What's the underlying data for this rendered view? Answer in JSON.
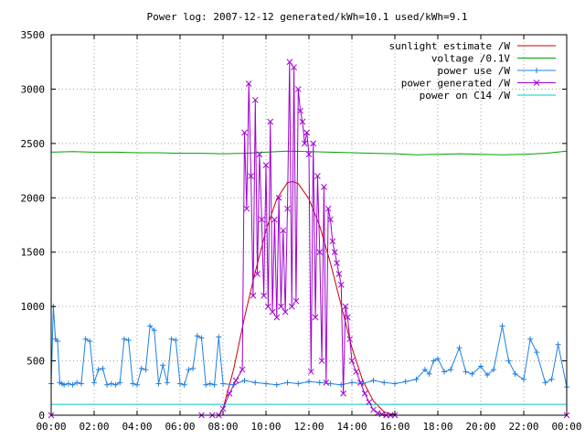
{
  "chart_data": {
    "type": "line",
    "title": "Power log: 2007-12-12 generated/kWh=10.1 used/kWh=9.1",
    "xlabel": "",
    "ylabel": "",
    "xlim": [
      0,
      24
    ],
    "ylim": [
      0,
      3500
    ],
    "x_ticks": [
      "00:00",
      "02:00",
      "04:00",
      "06:00",
      "08:00",
      "10:00",
      "12:00",
      "14:00",
      "16:00",
      "18:00",
      "20:00",
      "22:00",
      "00:00"
    ],
    "y_ticks": [
      "0",
      "500",
      "1000",
      "1500",
      "2000",
      "2500",
      "3000",
      "3500"
    ],
    "grid": true,
    "legend_position": "top-right",
    "series": [
      {
        "name": "sunlight estimate /W",
        "color": "#cc0000",
        "style": "line",
        "x": [
          7.8,
          8.0,
          8.5,
          9.0,
          9.5,
          10.0,
          10.5,
          11.0,
          11.25,
          11.5,
          12.0,
          12.5,
          13.0,
          13.5,
          14.0,
          14.5,
          15.0,
          15.5,
          16.0
        ],
        "values": [
          0,
          60,
          430,
          900,
          1320,
          1700,
          1990,
          2140,
          2150,
          2130,
          1990,
          1740,
          1400,
          1010,
          620,
          320,
          130,
          30,
          0
        ]
      },
      {
        "name": "voltage /0.1V",
        "color": "#00a000",
        "style": "line",
        "x": [
          0,
          1,
          2,
          3,
          4,
          5,
          6,
          7,
          8,
          9,
          10,
          11,
          12,
          13,
          14,
          15,
          16,
          17,
          18,
          19,
          20,
          21,
          22,
          23,
          24
        ],
        "values": [
          2420,
          2425,
          2420,
          2420,
          2415,
          2415,
          2410,
          2410,
          2405,
          2410,
          2420,
          2430,
          2425,
          2420,
          2415,
          2410,
          2405,
          2395,
          2400,
          2405,
          2400,
          2395,
          2400,
          2410,
          2430
        ]
      },
      {
        "name": "power use /W",
        "color": "#2080e0",
        "style": "linespoints-plus",
        "x": [
          0.0,
          0.1,
          0.2,
          0.3,
          0.4,
          0.5,
          0.6,
          0.8,
          1.0,
          1.2,
          1.4,
          1.6,
          1.8,
          2.0,
          2.2,
          2.4,
          2.6,
          2.8,
          3.0,
          3.2,
          3.4,
          3.6,
          3.8,
          4.0,
          4.2,
          4.4,
          4.6,
          4.8,
          5.0,
          5.2,
          5.4,
          5.6,
          5.8,
          6.0,
          6.2,
          6.4,
          6.6,
          6.8,
          7.0,
          7.2,
          7.4,
          7.6,
          7.8,
          8.0,
          8.5,
          9.0,
          9.5,
          10.0,
          10.5,
          11.0,
          11.5,
          12.0,
          12.5,
          13.0,
          13.5,
          14.0,
          14.5,
          15.0,
          15.5,
          16.0,
          16.5,
          17.0,
          17.4,
          17.6,
          17.8,
          18.0,
          18.3,
          18.6,
          19.0,
          19.3,
          19.6,
          20.0,
          20.3,
          20.6,
          21.0,
          21.3,
          21.6,
          22.0,
          22.3,
          22.6,
          23.0,
          23.3,
          23.6,
          24.0
        ],
        "values": [
          290,
          1000,
          700,
          680,
          300,
          290,
          280,
          290,
          280,
          300,
          290,
          700,
          680,
          300,
          420,
          430,
          280,
          290,
          280,
          300,
          700,
          690,
          290,
          280,
          430,
          420,
          820,
          780,
          290,
          460,
          300,
          700,
          690,
          290,
          280,
          420,
          430,
          730,
          710,
          280,
          290,
          280,
          720,
          290,
          280,
          320,
          300,
          290,
          280,
          300,
          290,
          310,
          300,
          290,
          280,
          300,
          290,
          320,
          300,
          290,
          310,
          330,
          420,
          380,
          500,
          520,
          400,
          420,
          620,
          400,
          380,
          450,
          370,
          420,
          820,
          500,
          380,
          330,
          700,
          580,
          300,
          330,
          650,
          260
        ]
      },
      {
        "name": "power generated /W",
        "color": "#a000d0",
        "style": "linespoints-x",
        "x": [
          0,
          7.0,
          7.5,
          7.8,
          8.0,
          8.3,
          8.6,
          8.9,
          9.0,
          9.1,
          9.2,
          9.3,
          9.4,
          9.5,
          9.6,
          9.7,
          9.8,
          9.9,
          10.0,
          10.1,
          10.2,
          10.3,
          10.4,
          10.5,
          10.6,
          10.7,
          10.8,
          10.9,
          11.0,
          11.1,
          11.2,
          11.3,
          11.4,
          11.5,
          11.6,
          11.7,
          11.8,
          11.9,
          12.0,
          12.1,
          12.2,
          12.3,
          12.4,
          12.5,
          12.6,
          12.7,
          12.8,
          12.9,
          13.0,
          13.1,
          13.2,
          13.3,
          13.4,
          13.5,
          13.6,
          13.7,
          13.8,
          13.9,
          14.0,
          14.2,
          14.4,
          14.6,
          14.8,
          15.0,
          15.2,
          15.4,
          15.6,
          15.8,
          16.0,
          24.0
        ],
        "values": [
          0,
          0,
          0,
          0,
          60,
          200,
          320,
          420,
          2600,
          1900,
          3050,
          2200,
          1100,
          2900,
          1300,
          2400,
          1800,
          1100,
          2300,
          1000,
          2700,
          950,
          1800,
          900,
          2000,
          1000,
          1700,
          950,
          1900,
          3250,
          1000,
          3200,
          1050,
          3000,
          2800,
          2700,
          2500,
          2600,
          2400,
          400,
          2500,
          900,
          2200,
          1500,
          500,
          2100,
          300,
          1900,
          1800,
          1600,
          1500,
          1400,
          1300,
          1200,
          200,
          1000,
          900,
          700,
          500,
          400,
          300,
          200,
          120,
          50,
          20,
          10,
          0,
          0,
          0,
          0
        ]
      },
      {
        "name": "power on C14 /W",
        "color": "#00c8c8",
        "style": "line",
        "x": [
          0,
          6,
          12,
          18,
          24
        ],
        "values": [
          100,
          100,
          100,
          100,
          100
        ]
      }
    ]
  }
}
